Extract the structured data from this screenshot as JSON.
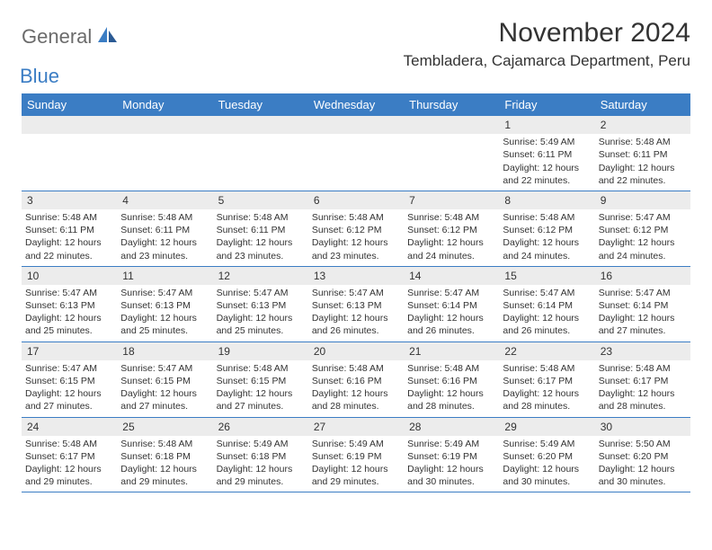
{
  "logo": {
    "general": "General",
    "blue": "Blue"
  },
  "title": "November 2024",
  "location": "Tembladera, Cajamarca Department, Peru",
  "colors": {
    "header_bg": "#3b7dc4",
    "header_text": "#ffffff",
    "daynum_bg": "#ececec",
    "text": "#333333",
    "logo_gray": "#6b6b6b",
    "logo_blue": "#3b7dc4"
  },
  "dayNames": [
    "Sunday",
    "Monday",
    "Tuesday",
    "Wednesday",
    "Thursday",
    "Friday",
    "Saturday"
  ],
  "weeks": [
    [
      {
        "n": "",
        "sr": "",
        "ss": "",
        "dl": ""
      },
      {
        "n": "",
        "sr": "",
        "ss": "",
        "dl": ""
      },
      {
        "n": "",
        "sr": "",
        "ss": "",
        "dl": ""
      },
      {
        "n": "",
        "sr": "",
        "ss": "",
        "dl": ""
      },
      {
        "n": "",
        "sr": "",
        "ss": "",
        "dl": ""
      },
      {
        "n": "1",
        "sr": "Sunrise: 5:49 AM",
        "ss": "Sunset: 6:11 PM",
        "dl": "Daylight: 12 hours and 22 minutes."
      },
      {
        "n": "2",
        "sr": "Sunrise: 5:48 AM",
        "ss": "Sunset: 6:11 PM",
        "dl": "Daylight: 12 hours and 22 minutes."
      }
    ],
    [
      {
        "n": "3",
        "sr": "Sunrise: 5:48 AM",
        "ss": "Sunset: 6:11 PM",
        "dl": "Daylight: 12 hours and 22 minutes."
      },
      {
        "n": "4",
        "sr": "Sunrise: 5:48 AM",
        "ss": "Sunset: 6:11 PM",
        "dl": "Daylight: 12 hours and 23 minutes."
      },
      {
        "n": "5",
        "sr": "Sunrise: 5:48 AM",
        "ss": "Sunset: 6:11 PM",
        "dl": "Daylight: 12 hours and 23 minutes."
      },
      {
        "n": "6",
        "sr": "Sunrise: 5:48 AM",
        "ss": "Sunset: 6:12 PM",
        "dl": "Daylight: 12 hours and 23 minutes."
      },
      {
        "n": "7",
        "sr": "Sunrise: 5:48 AM",
        "ss": "Sunset: 6:12 PM",
        "dl": "Daylight: 12 hours and 24 minutes."
      },
      {
        "n": "8",
        "sr": "Sunrise: 5:48 AM",
        "ss": "Sunset: 6:12 PM",
        "dl": "Daylight: 12 hours and 24 minutes."
      },
      {
        "n": "9",
        "sr": "Sunrise: 5:47 AM",
        "ss": "Sunset: 6:12 PM",
        "dl": "Daylight: 12 hours and 24 minutes."
      }
    ],
    [
      {
        "n": "10",
        "sr": "Sunrise: 5:47 AM",
        "ss": "Sunset: 6:13 PM",
        "dl": "Daylight: 12 hours and 25 minutes."
      },
      {
        "n": "11",
        "sr": "Sunrise: 5:47 AM",
        "ss": "Sunset: 6:13 PM",
        "dl": "Daylight: 12 hours and 25 minutes."
      },
      {
        "n": "12",
        "sr": "Sunrise: 5:47 AM",
        "ss": "Sunset: 6:13 PM",
        "dl": "Daylight: 12 hours and 25 minutes."
      },
      {
        "n": "13",
        "sr": "Sunrise: 5:47 AM",
        "ss": "Sunset: 6:13 PM",
        "dl": "Daylight: 12 hours and 26 minutes."
      },
      {
        "n": "14",
        "sr": "Sunrise: 5:47 AM",
        "ss": "Sunset: 6:14 PM",
        "dl": "Daylight: 12 hours and 26 minutes."
      },
      {
        "n": "15",
        "sr": "Sunrise: 5:47 AM",
        "ss": "Sunset: 6:14 PM",
        "dl": "Daylight: 12 hours and 26 minutes."
      },
      {
        "n": "16",
        "sr": "Sunrise: 5:47 AM",
        "ss": "Sunset: 6:14 PM",
        "dl": "Daylight: 12 hours and 27 minutes."
      }
    ],
    [
      {
        "n": "17",
        "sr": "Sunrise: 5:47 AM",
        "ss": "Sunset: 6:15 PM",
        "dl": "Daylight: 12 hours and 27 minutes."
      },
      {
        "n": "18",
        "sr": "Sunrise: 5:47 AM",
        "ss": "Sunset: 6:15 PM",
        "dl": "Daylight: 12 hours and 27 minutes."
      },
      {
        "n": "19",
        "sr": "Sunrise: 5:48 AM",
        "ss": "Sunset: 6:15 PM",
        "dl": "Daylight: 12 hours and 27 minutes."
      },
      {
        "n": "20",
        "sr": "Sunrise: 5:48 AM",
        "ss": "Sunset: 6:16 PM",
        "dl": "Daylight: 12 hours and 28 minutes."
      },
      {
        "n": "21",
        "sr": "Sunrise: 5:48 AM",
        "ss": "Sunset: 6:16 PM",
        "dl": "Daylight: 12 hours and 28 minutes."
      },
      {
        "n": "22",
        "sr": "Sunrise: 5:48 AM",
        "ss": "Sunset: 6:17 PM",
        "dl": "Daylight: 12 hours and 28 minutes."
      },
      {
        "n": "23",
        "sr": "Sunrise: 5:48 AM",
        "ss": "Sunset: 6:17 PM",
        "dl": "Daylight: 12 hours and 28 minutes."
      }
    ],
    [
      {
        "n": "24",
        "sr": "Sunrise: 5:48 AM",
        "ss": "Sunset: 6:17 PM",
        "dl": "Daylight: 12 hours and 29 minutes."
      },
      {
        "n": "25",
        "sr": "Sunrise: 5:48 AM",
        "ss": "Sunset: 6:18 PM",
        "dl": "Daylight: 12 hours and 29 minutes."
      },
      {
        "n": "26",
        "sr": "Sunrise: 5:49 AM",
        "ss": "Sunset: 6:18 PM",
        "dl": "Daylight: 12 hours and 29 minutes."
      },
      {
        "n": "27",
        "sr": "Sunrise: 5:49 AM",
        "ss": "Sunset: 6:19 PM",
        "dl": "Daylight: 12 hours and 29 minutes."
      },
      {
        "n": "28",
        "sr": "Sunrise: 5:49 AM",
        "ss": "Sunset: 6:19 PM",
        "dl": "Daylight: 12 hours and 30 minutes."
      },
      {
        "n": "29",
        "sr": "Sunrise: 5:49 AM",
        "ss": "Sunset: 6:20 PM",
        "dl": "Daylight: 12 hours and 30 minutes."
      },
      {
        "n": "30",
        "sr": "Sunrise: 5:50 AM",
        "ss": "Sunset: 6:20 PM",
        "dl": "Daylight: 12 hours and 30 minutes."
      }
    ]
  ]
}
